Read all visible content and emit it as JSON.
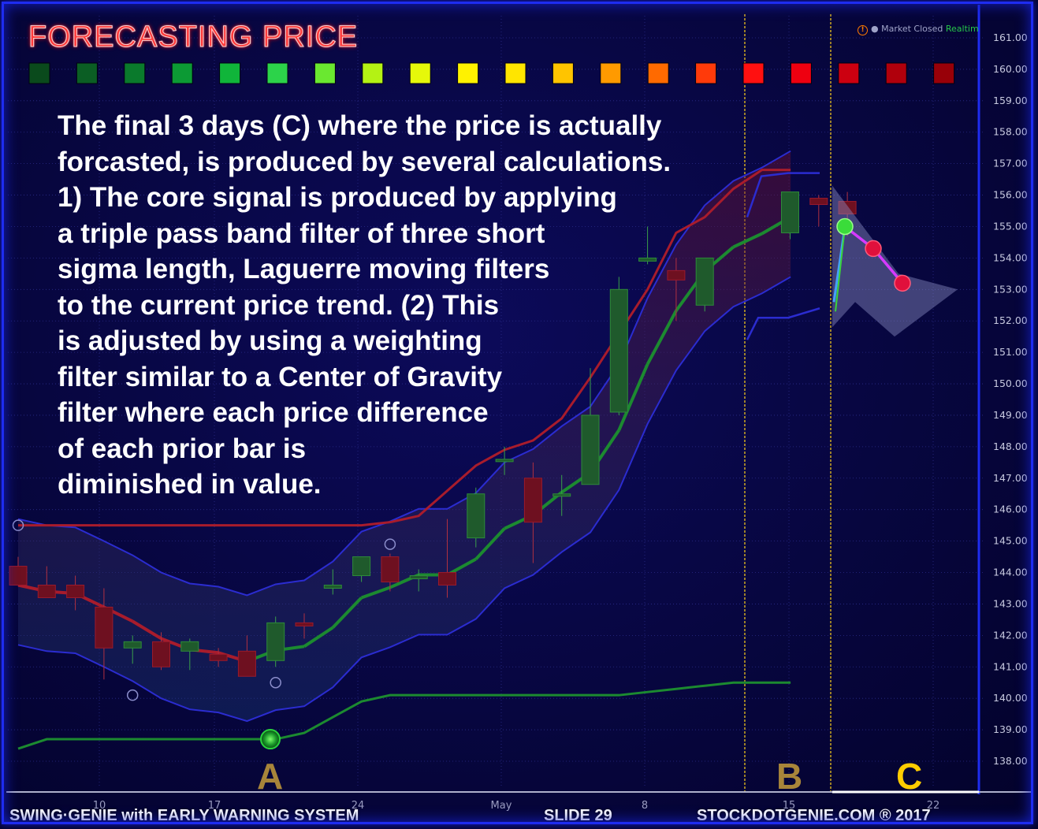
{
  "title": "FORECASTING PRICE",
  "status": {
    "market": "Market Closed",
    "feed": "Realtim"
  },
  "body_lines": [
    "The final 3 days (C) where the price is actually",
    "forcasted, is produced by several calculations.",
    "1) The core signal is produced by applying",
    "a triple pass band filter of three short",
    "sigma length, Laguerre moving filters",
    "to the current price trend. (2) This",
    "is adjusted by using a weighting",
    "filter similar to a Center of Gravity",
    "filter where each price difference",
    "of each prior bar is",
    "diminished in value."
  ],
  "footer": {
    "left": "SWING·GENIE with  EARLY WARNING SYSTEM",
    "center": "SLIDE 29",
    "right": "STOCKDOTGENIE.COM ® 2017"
  },
  "markers": {
    "A": "A",
    "B": "B",
    "C": "C"
  },
  "colors": {
    "bull": "#1f5a2c",
    "bear": "#6e1020",
    "bull_line": "#1c8a30",
    "bear_line": "#a81c2c",
    "band": "#2b2cd0",
    "accent_marker": "#a8853a",
    "accent_c": "#ffcc00",
    "divider": "#ffd21a"
  },
  "swatches": [
    "#0a4a1c",
    "#0b5e24",
    "#0a7a2c",
    "#0c9a34",
    "#10b53a",
    "#2cd34a",
    "#6ae830",
    "#b4f214",
    "#e6f80a",
    "#fff200",
    "#ffe500",
    "#ffc400",
    "#ff9a00",
    "#ff6a00",
    "#ff3a0a",
    "#ff1010",
    "#ee0010",
    "#cc0010",
    "#b0000c",
    "#980008"
  ],
  "chart_data": {
    "type": "candlestick",
    "y_axis": {
      "min": 138,
      "max": 161,
      "ticks": [
        "161.00",
        "160.00",
        "159.00",
        "158.00",
        "157.00",
        "156.00",
        "155.00",
        "154.00",
        "153.00",
        "152.00",
        "151.00",
        "150.00",
        "149.00",
        "148.00",
        "147.00",
        "146.00",
        "145.00",
        "144.00",
        "143.00",
        "142.00",
        "141.00",
        "140.00",
        "139.00",
        "138.00"
      ]
    },
    "x_axis": {
      "labels": [
        "10",
        "17",
        "24",
        "May",
        "8",
        "15",
        "22"
      ]
    },
    "candles": [
      {
        "o": 144.2,
        "h": 144.5,
        "l": 143.6,
        "c": 143.6
      },
      {
        "o": 143.6,
        "h": 144.2,
        "l": 143.2,
        "c": 143.2
      },
      {
        "o": 143.6,
        "h": 143.9,
        "l": 142.8,
        "c": 143.2
      },
      {
        "o": 142.9,
        "h": 143.5,
        "l": 140.6,
        "c": 141.6
      },
      {
        "o": 141.6,
        "h": 142.0,
        "l": 141.1,
        "c": 141.8
      },
      {
        "o": 141.8,
        "h": 142.1,
        "l": 140.9,
        "c": 141.0
      },
      {
        "o": 141.5,
        "h": 141.9,
        "l": 140.9,
        "c": 141.8
      },
      {
        "o": 141.4,
        "h": 141.6,
        "l": 141.0,
        "c": 141.2
      },
      {
        "o": 141.5,
        "h": 142.0,
        "l": 140.7,
        "c": 140.7
      },
      {
        "o": 141.2,
        "h": 142.6,
        "l": 141.0,
        "c": 142.4
      },
      {
        "o": 142.4,
        "h": 142.7,
        "l": 141.9,
        "c": 142.3
      },
      {
        "o": 143.5,
        "h": 144.1,
        "l": 143.3,
        "c": 143.6
      },
      {
        "o": 143.9,
        "h": 144.5,
        "l": 143.7,
        "c": 144.5
      },
      {
        "o": 144.5,
        "h": 144.6,
        "l": 143.4,
        "c": 143.7
      },
      {
        "o": 143.8,
        "h": 144.1,
        "l": 143.4,
        "c": 143.9
      },
      {
        "o": 144.0,
        "h": 145.7,
        "l": 143.2,
        "c": 143.6
      },
      {
        "o": 145.1,
        "h": 146.7,
        "l": 144.8,
        "c": 146.5
      },
      {
        "o": 147.6,
        "h": 148.0,
        "l": 147.1,
        "c": 147.6
      },
      {
        "o": 147.0,
        "h": 147.5,
        "l": 144.3,
        "c": 145.6
      },
      {
        "o": 146.5,
        "h": 147.1,
        "l": 145.8,
        "c": 146.5
      },
      {
        "o": 146.8,
        "h": 150.5,
        "l": 146.8,
        "c": 149.0
      },
      {
        "o": 149.1,
        "h": 153.4,
        "l": 149.0,
        "c": 153.0
      },
      {
        "o": 153.9,
        "h": 155.0,
        "l": 153.8,
        "c": 154.0
      },
      {
        "o": 153.6,
        "h": 154.0,
        "l": 152.0,
        "c": 153.3
      },
      {
        "o": 152.5,
        "h": 154.0,
        "l": 152.3,
        "c": 154.0
      },
      {
        "o": 154.8,
        "h": 156.1,
        "l": 154.6,
        "c": 156.1
      },
      {
        "o": 155.9,
        "h": 156.0,
        "l": 155.0,
        "c": 155.7
      },
      {
        "o": 155.8,
        "h": 156.1,
        "l": 154.7,
        "c": 155.4
      }
    ],
    "forecast": [
      155.0,
      154.3,
      153.2
    ],
    "regions": [
      "A",
      "B",
      "C"
    ]
  }
}
